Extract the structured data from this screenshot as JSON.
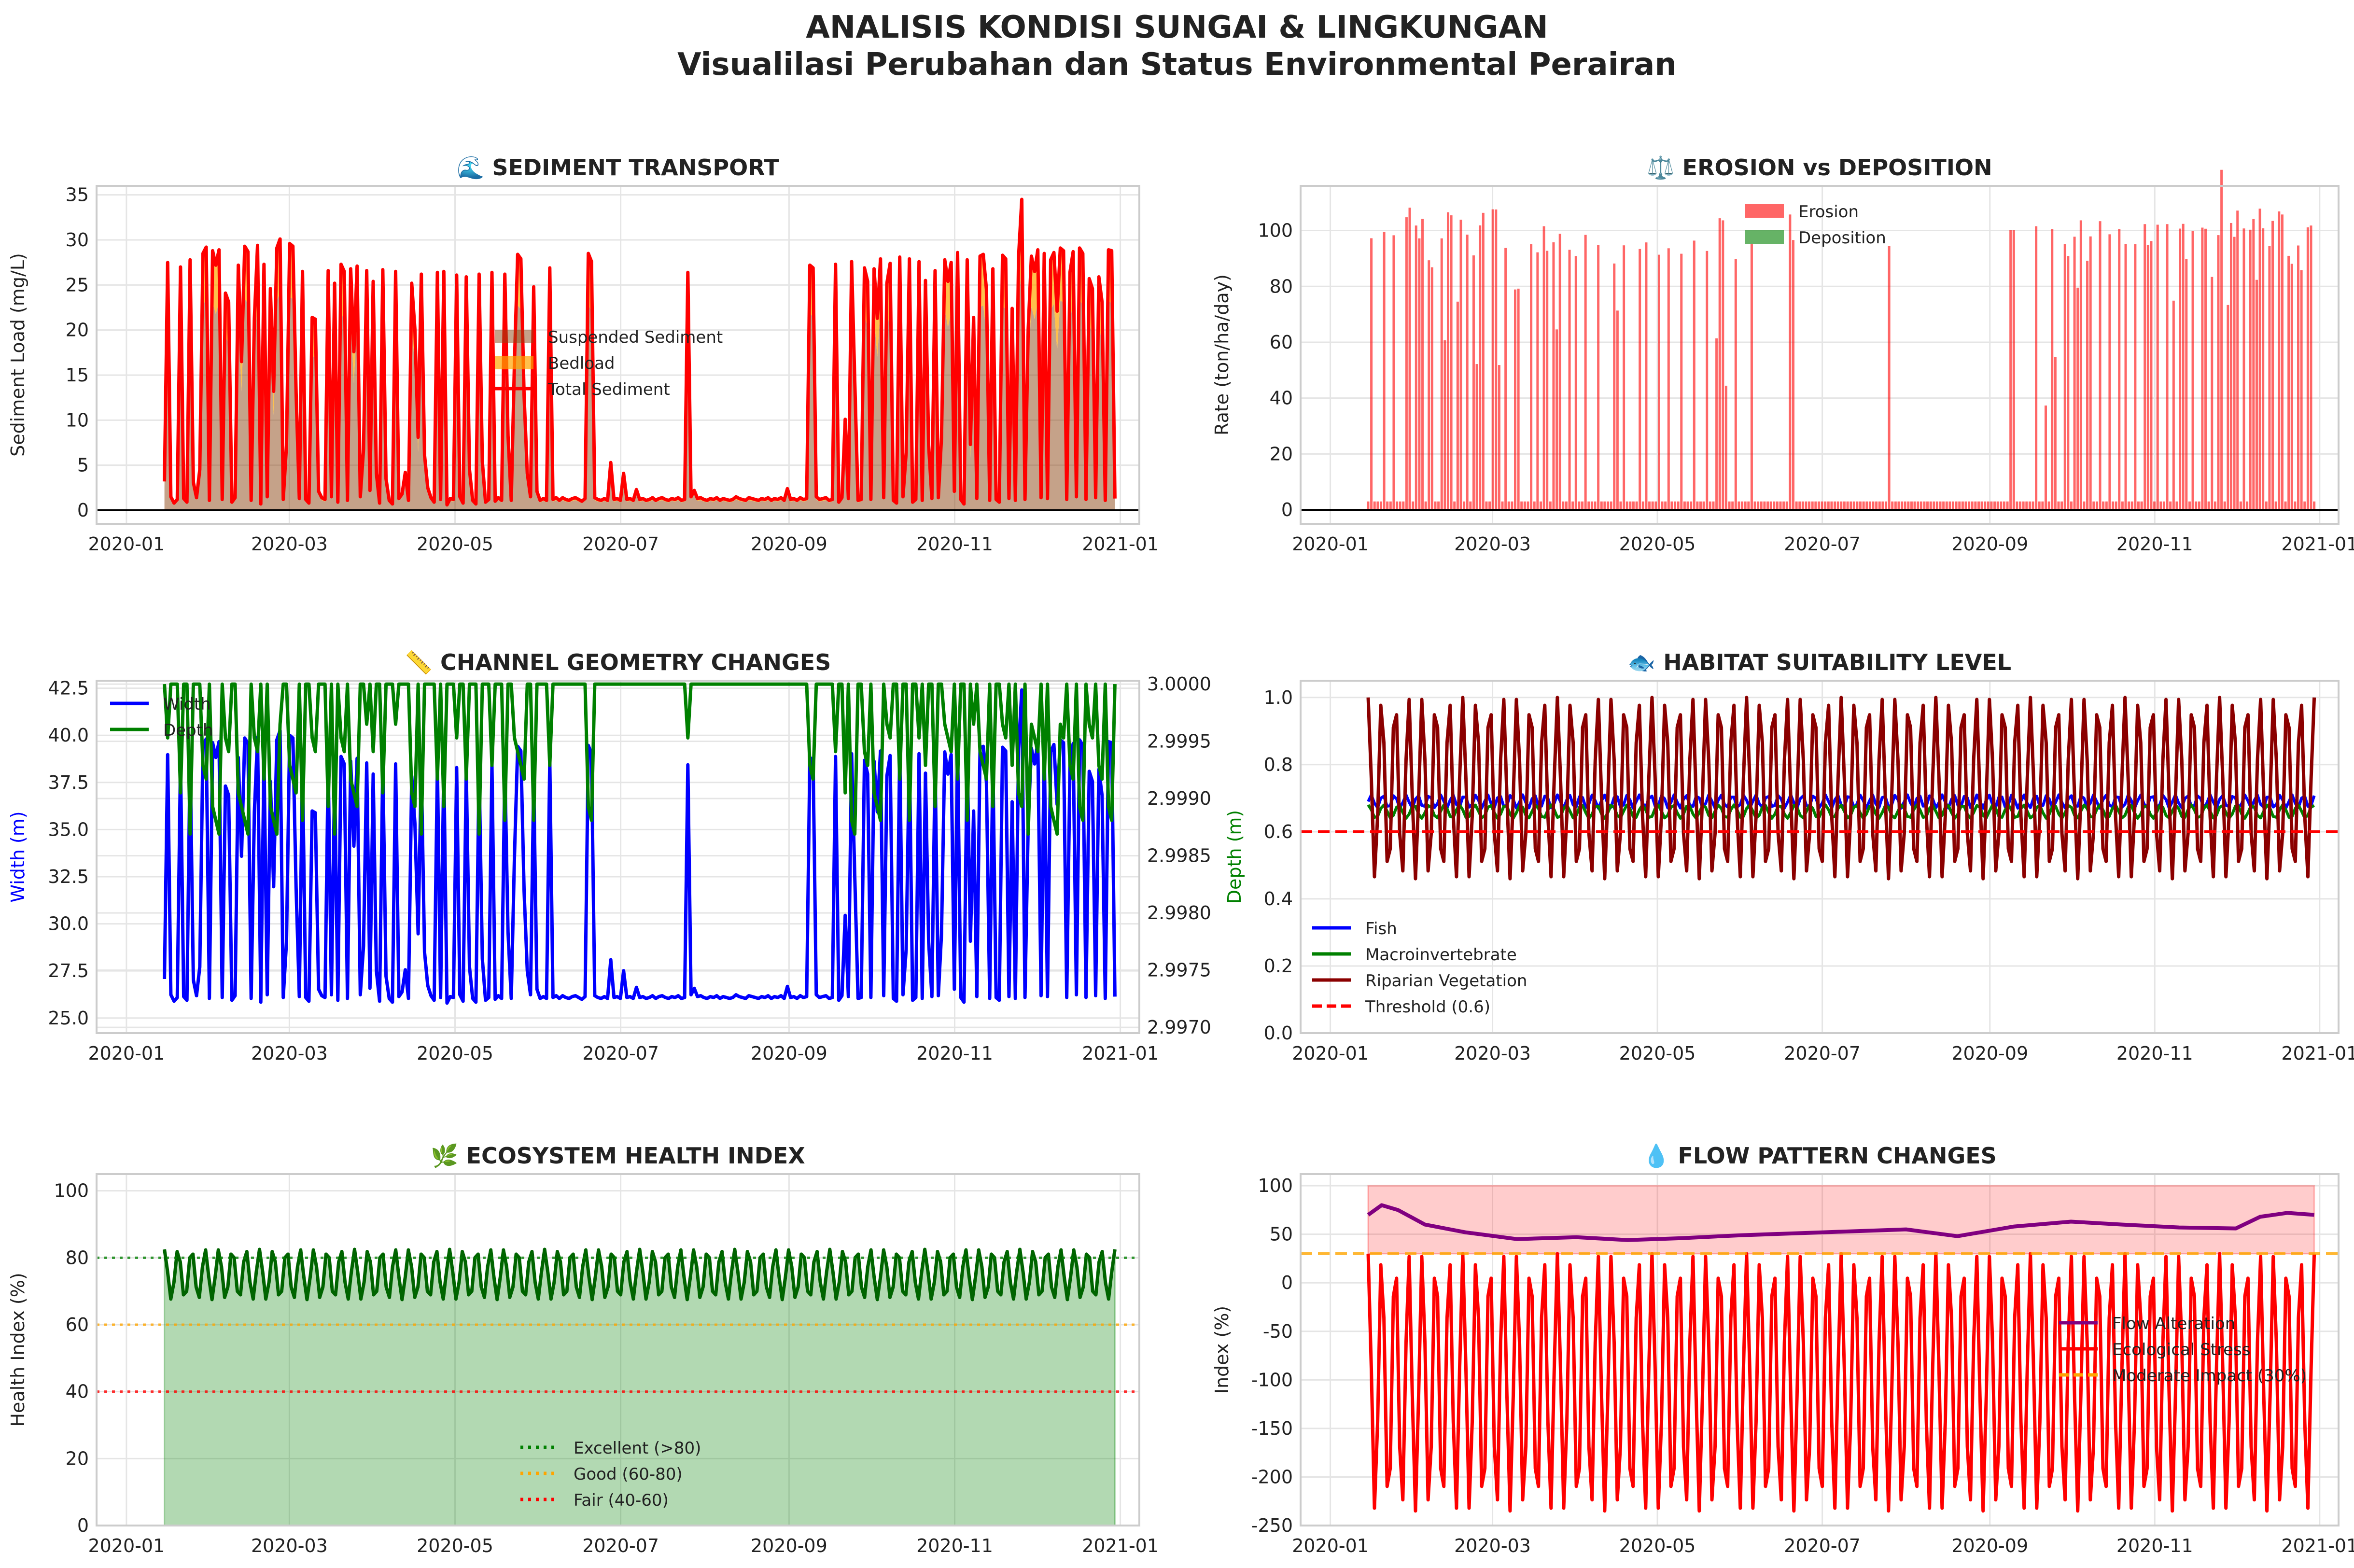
{
  "figure": {
    "title": "ANALISIS KONDISI SUNGAI & LINGKUNGAN",
    "subtitle": "Visualilasi Perubahan dan Status Environmental Perairan"
  },
  "colors": {
    "red": "#ff0000",
    "blue": "#0000ff",
    "green": "#008000",
    "darkred": "#8b0000",
    "darkgreen": "#006400",
    "purple": "#800080",
    "orange": "#ffa500",
    "brown": "#8b4513",
    "grid": "#e5e5e5",
    "axes_edge": "#cccccc",
    "text": "#222222"
  },
  "chart_data": [
    {
      "id": "sediment",
      "type": "area",
      "title": "🌊 SEDIMENT TRANSPORT",
      "xlabel": "",
      "ylabel": "Sediment Load (mg/L)",
      "xticks": [
        "2020-01",
        "2020-03",
        "2020-05",
        "2020-07",
        "2020-09",
        "2020-11",
        "2021-01"
      ],
      "yticks": [
        0,
        5,
        10,
        15,
        20,
        25,
        30,
        35
      ],
      "ylim": [
        -1.5,
        36
      ],
      "legend_position": "center",
      "legend": [
        "Suspended Sediment",
        "Bedload",
        "Total Sediment"
      ],
      "series": [
        {
          "name": "Suspended Sediment",
          "color": "#8b4513",
          "style": "fill",
          "alpha": 0.5,
          "base": "suspended_fraction_of_total",
          "fraction": 0.8
        },
        {
          "name": "Bedload",
          "color": "#ffa500",
          "style": "fill",
          "alpha": 0.7,
          "fraction": 0.2
        },
        {
          "name": "Total Sediment",
          "color": "#ff0000",
          "style": "line",
          "x_start": "2020-01-15",
          "x_end": "2020-12-30",
          "values": [
            3.2,
            27.5,
            1.5,
            0.8,
            1.2,
            27,
            1.3,
            0.9,
            27.8,
            3.1,
            1.4,
            4.5,
            28.5,
            29.2,
            1.1,
            28.8,
            27.2,
            28.9,
            1.2,
            24.1,
            23.1,
            0.9,
            1.4,
            27.2,
            16.5,
            29.3,
            28.7,
            1.1,
            21.3,
            29.4,
            0.7,
            27.3,
            1.5,
            24.6,
            13.2,
            29.1,
            30.1,
            1.2,
            7.2,
            29.6,
            29.3,
            13.1,
            1.3,
            26.5,
            1.2,
            0.8,
            21.4,
            21.2,
            2.1,
            1.4,
            1.2,
            26.6,
            1.5,
            25.2,
            0.9,
            27.3,
            26.5,
            1.1,
            26.8,
            17.6,
            27.1,
            1.5,
            6.8,
            26.6,
            2.2,
            25.4,
            4.1,
            0.8,
            26.7,
            3.5,
            1.1,
            0.7,
            26.5,
            1.3,
            1.8,
            4.2,
            1.1,
            25.2,
            20.1,
            8.1,
            26.2,
            6.1,
            2.5,
            1.4,
            0.9,
            26.4,
            1.2,
            26.5,
            0.6,
            1.3,
            1.2,
            26.1,
            1.5,
            0.8,
            25.9,
            4.5,
            1.1,
            0.7,
            26.2,
            5.4,
            0.9,
            1.2,
            26.4,
            1.0,
            1.4,
            1.1,
            26.2,
            8.3,
            1.1,
            16.4,
            28.4,
            27.9,
            12.7,
            4.1,
            1.5,
            24.8,
            2.1,
            1.1,
            1.3,
            1.1,
            26.9,
            1.2,
            1.4,
            1.1,
            1.4,
            1.2,
            1.1,
            1.3,
            1.4,
            1.2,
            1.0,
            1.3,
            28.5,
            27.6,
            1.4,
            1.2,
            1.1,
            1.3,
            1.1,
            5.3,
            1.2,
            1.3,
            1.1,
            4.1,
            1.2,
            1.3,
            1.1,
            2.3,
            1.2,
            1.3,
            1.1,
            1.2,
            1.4,
            1.1,
            1.3,
            1.4,
            1.2,
            1.1,
            1.3,
            1.2,
            1.4,
            1.1,
            1.2,
            26.4,
            1.5,
            2.2,
            1.3,
            1.4,
            1.2,
            1.1,
            1.3,
            1.2,
            1.4,
            1.1,
            1.3,
            1.2,
            1.1,
            1.2,
            1.5,
            1.3,
            1.2,
            1.1,
            1.4,
            1.3,
            1.2,
            1.1,
            1.3,
            1.2,
            1.4,
            1.1,
            1.3,
            1.2,
            1.4,
            1.1,
            2.4,
            1.2,
            1.3,
            1.1,
            1.4,
            1.2,
            1.3,
            27.2,
            26.9,
            1.5,
            1.2,
            1.3,
            1.4,
            1.1,
            1.2,
            27.3,
            0.9,
            1.4,
            10.1,
            1.3,
            27.6,
            14.2,
            1.1,
            1.2,
            26.9,
            25.4,
            1.2,
            26.8,
            21.3,
            27.9,
            1.4,
            25.2,
            27.4,
            1.1,
            0.8,
            28.1,
            1.5,
            6.4,
            27.9,
            0.9,
            1.2,
            27.6,
            1.1,
            25.5,
            7.2,
            1.3,
            26.6,
            1.4,
            8.1,
            27.8,
            25.4,
            27.5,
            2.1,
            28.6,
            1.2,
            0.7,
            27.8,
            7.3,
            21.4,
            1.3,
            28.2,
            28.4,
            24.5,
            1.1,
            26.8,
            1.2,
            0.9,
            28.3,
            27.9,
            1.3,
            22.4,
            1.1,
            28.1,
            34.5,
            1.2,
            20.1,
            28.2,
            26.5,
            28.9,
            1.4,
            28.5,
            1.3,
            27.8,
            28.6,
            22.1,
            29.1,
            28.8,
            1.2,
            26.4,
            28.7,
            1.5,
            29.1,
            28.5,
            1.2,
            25.7,
            24.6,
            1.4,
            25.9,
            23.1,
            1.1,
            28.9,
            28.8,
            1.3
          ]
        }
      ]
    },
    {
      "id": "erosion",
      "type": "bar",
      "title": "⚖️ EROSION vs DEPOSITION",
      "ylabel": "Rate (ton/ha/day)",
      "xticks": [
        "2020-01",
        "2020-03",
        "2020-05",
        "2020-07",
        "2020-09",
        "2020-11",
        "2021-01"
      ],
      "yticks": [
        0,
        20,
        40,
        60,
        80,
        100
      ],
      "ylim": [
        -5,
        116
      ],
      "legend_position": "upper center",
      "legend": [
        "Erosion",
        "Deposition"
      ],
      "series": [
        {
          "name": "Erosion",
          "color": "#ff0000",
          "alpha": 0.6,
          "derived_from": "sediment_total",
          "rule": "high sediment -> ~100, low -> ~3"
        },
        {
          "name": "Deposition",
          "color": "#008000",
          "alpha": 0.6,
          "values": "all zero"
        }
      ]
    },
    {
      "id": "geometry",
      "type": "line",
      "title": "📏 CHANNEL GEOMETRY CHANGES",
      "ylabel": "Width (m)",
      "ylabel_right": "Depth (m)",
      "xticks": [
        "2020-01",
        "2020-03",
        "2020-05",
        "2020-07",
        "2020-09",
        "2020-11",
        "2021-01"
      ],
      "yticks": [
        25.0,
        27.5,
        30.0,
        32.5,
        35.0,
        37.5,
        40.0,
        42.5
      ],
      "yticks_labels": [
        "25.0",
        "27.5",
        "30.0",
        "32.5",
        "35.0",
        "37.5",
        "40.0",
        "42.5"
      ],
      "ylim": [
        24.2,
        42.9
      ],
      "yticks_right": [
        "2.9970",
        "2.9975",
        "2.9980",
        "2.9985",
        "2.9990",
        "2.9995",
        "3.0000"
      ],
      "ylim_right": [
        2.99695,
        3.00003
      ],
      "legend_position": "upper left",
      "legend": [
        "Width",
        "Depth"
      ],
      "series": [
        {
          "name": "Width",
          "color": "#0000ff",
          "axis": "left",
          "rule": "25.5 + 0.49 * total_sediment"
        },
        {
          "name": "Depth",
          "color": "#008000",
          "axis": "right",
          "rule": "3.0 - 0.0001 * total_sediment"
        }
      ]
    },
    {
      "id": "habitat",
      "type": "line",
      "title": "🐟 HABITAT SUITABILITY LEVEL",
      "ylabel": "",
      "xticks": [
        "2020-01",
        "2020-03",
        "2020-05",
        "2020-07",
        "2020-09",
        "2020-11",
        "2021-01"
      ],
      "yticks": [
        0.0,
        0.2,
        0.4,
        0.6,
        0.8,
        1.0
      ],
      "yticks_labels": [
        "0.0",
        "0.2",
        "0.4",
        "0.6",
        "0.8",
        "1.0"
      ],
      "ylim": [
        0,
        1.05
      ],
      "legend_position": "lower left",
      "legend": [
        "Fish",
        "Macroinvertebrate",
        "Riparian Vegetation",
        "Threshold (0.6)"
      ],
      "threshold": 0.6,
      "series": [
        {
          "name": "Fish",
          "color": "#0000ff",
          "mean": 0.69,
          "amplitude": 0.02
        },
        {
          "name": "Macroinvertebrate",
          "color": "#008000",
          "mean": 0.66,
          "amplitude": 0.02
        },
        {
          "name": "Riparian Vegetation",
          "color": "#8b0000",
          "high": 1.0,
          "low": 0.46,
          "cycles": 70
        },
        {
          "name": "Threshold (0.6)",
          "color": "#ff0000",
          "style": "dashed",
          "value": 0.6
        }
      ]
    },
    {
      "id": "health",
      "type": "area",
      "title": "🌿 ECOSYSTEM HEALTH INDEX",
      "ylabel": "Health Index (%)",
      "xticks": [
        "2020-01",
        "2020-03",
        "2020-05",
        "2020-07",
        "2020-09",
        "2020-11",
        "2021-01"
      ],
      "yticks": [
        0,
        20,
        40,
        60,
        80,
        100
      ],
      "ylim": [
        0,
        105
      ],
      "legend_position": "lower center",
      "legend": [
        "Excellent (>80)",
        "Good (60-80)",
        "Fair (40-60)"
      ],
      "reference_lines": [
        {
          "label": "Excellent (>80)",
          "value": 80,
          "color": "#008000"
        },
        {
          "label": "Good (60-80)",
          "value": 60,
          "color": "#ffa500"
        },
        {
          "label": "Fair (40-60)",
          "value": 40,
          "color": "#ff0000"
        }
      ],
      "series": [
        {
          "name": "Health Index",
          "color": "#006400",
          "high": 82.5,
          "low": 67.5,
          "cycles": 70,
          "fill_color": "#008000",
          "fill_alpha": 0.3
        }
      ]
    },
    {
      "id": "flow",
      "type": "line",
      "title": "💧 FLOW PATTERN CHANGES",
      "ylabel": "Index (%)",
      "xticks": [
        "2020-01",
        "2020-03",
        "2020-05",
        "2020-07",
        "2020-09",
        "2020-11",
        "2021-01"
      ],
      "yticks": [
        -250,
        -200,
        -150,
        -100,
        -50,
        0,
        50,
        100
      ],
      "ylim": [
        -250,
        112
      ],
      "legend_position": "center right",
      "legend": [
        "Flow Alteration",
        "Ecological Stress",
        "Moderate Impact (30%)"
      ],
      "threshold": 30,
      "shaded_band": [
        30,
        100
      ],
      "series": [
        {
          "name": "Flow Alteration",
          "color": "#800080",
          "points": [
            [
              "2020-01-15",
              70
            ],
            [
              "2020-01-20",
              80
            ],
            [
              "2020-01-26",
              75
            ],
            [
              "2020-02-05",
              60
            ],
            [
              "2020-02-20",
              52
            ],
            [
              "2020-03-10",
              45
            ],
            [
              "2020-04-01",
              47
            ],
            [
              "2020-04-20",
              44
            ],
            [
              "2020-05-10",
              46
            ],
            [
              "2020-06-01",
              49
            ],
            [
              "2020-07-01",
              52
            ],
            [
              "2020-08-01",
              55
            ],
            [
              "2020-08-20",
              48
            ],
            [
              "2020-09-10",
              58
            ],
            [
              "2020-10-01",
              63
            ],
            [
              "2020-10-20",
              60
            ],
            [
              "2020-11-10",
              57
            ],
            [
              "2020-12-01",
              56
            ],
            [
              "2020-12-10",
              68
            ],
            [
              "2020-12-20",
              72
            ],
            [
              "2020-12-30",
              70
            ]
          ]
        },
        {
          "name": "Ecological Stress",
          "color": "#ff0000",
          "high": 30,
          "low": -235,
          "cycles": 70
        },
        {
          "name": "Moderate Impact (30%)",
          "color": "#ffa500",
          "style": "dashed",
          "value": 30
        }
      ]
    }
  ]
}
